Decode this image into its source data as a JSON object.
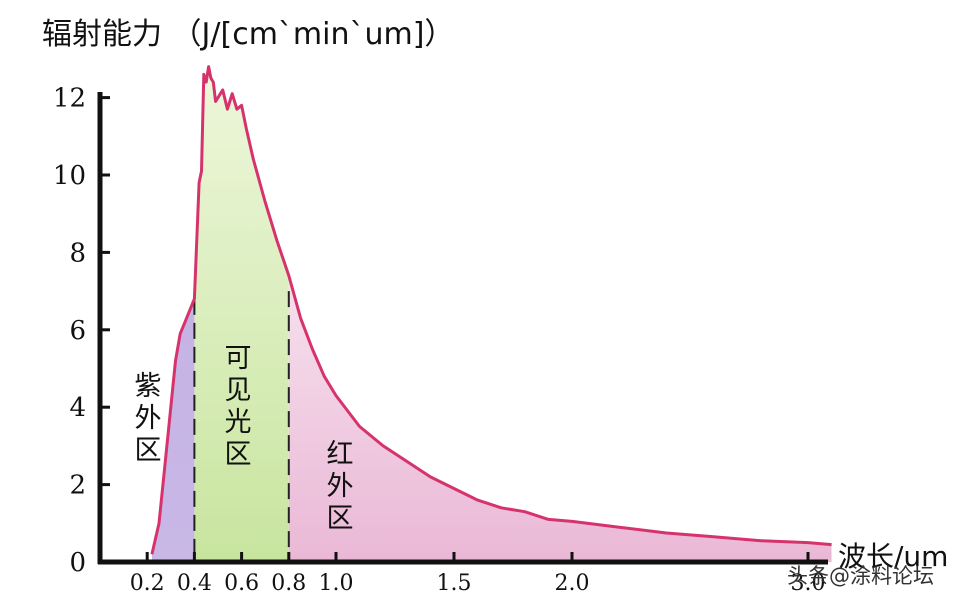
{
  "chart_data": {
    "type": "area",
    "title": "辐射能力 （J/[cm`min`um]）",
    "xlabel": "波长/um",
    "ylabel": "",
    "xlim": [
      0,
      3.2
    ],
    "ylim": [
      0,
      12.5
    ],
    "x_ticks": [
      {
        "value": 0.2,
        "label": "0.2"
      },
      {
        "value": 0.4,
        "label": "0.4"
      },
      {
        "value": 0.6,
        "label": "0.6"
      },
      {
        "value": 0.8,
        "label": "0.8"
      },
      {
        "value": 1.0,
        "label": "1.0"
      },
      {
        "value": 1.5,
        "label": "1.5"
      },
      {
        "value": 2.0,
        "label": "2.0"
      },
      {
        "value": 3.0,
        "label": "3.0"
      }
    ],
    "y_ticks": [
      {
        "value": 0,
        "label": "0"
      },
      {
        "value": 2,
        "label": "2"
      },
      {
        "value": 4,
        "label": "4"
      },
      {
        "value": 6,
        "label": "6"
      },
      {
        "value": 8,
        "label": "8"
      },
      {
        "value": 10,
        "label": "10"
      },
      {
        "value": 12,
        "label": "12"
      }
    ],
    "series": [
      {
        "color": "#d6336c",
        "x": [
          0.22,
          0.25,
          0.28,
          0.3,
          0.32,
          0.34,
          0.36,
          0.38,
          0.4,
          0.42,
          0.43,
          0.44,
          0.45,
          0.46,
          0.47,
          0.48,
          0.49,
          0.5,
          0.52,
          0.54,
          0.55,
          0.56,
          0.58,
          0.6,
          0.62,
          0.65,
          0.7,
          0.75,
          0.8,
          0.85,
          0.9,
          0.95,
          1.0,
          1.1,
          1.2,
          1.3,
          1.4,
          1.5,
          1.6,
          1.7,
          1.8,
          1.9,
          2.0,
          2.2,
          2.4,
          2.6,
          2.8,
          3.0,
          3.1
        ],
        "y": [
          0.2,
          1.0,
          2.8,
          4.0,
          5.2,
          5.9,
          6.2,
          6.5,
          6.8,
          9.8,
          10.1,
          12.6,
          12.4,
          12.8,
          12.5,
          12.4,
          11.9,
          12.0,
          12.2,
          11.7,
          11.9,
          12.1,
          11.7,
          11.8,
          11.2,
          10.4,
          9.3,
          8.3,
          7.4,
          6.3,
          5.5,
          4.8,
          4.3,
          3.5,
          3.0,
          2.6,
          2.2,
          1.9,
          1.6,
          1.4,
          1.3,
          1.1,
          1.05,
          0.9,
          0.75,
          0.65,
          0.55,
          0.5,
          0.45
        ]
      }
    ],
    "regions": [
      {
        "label": "紫外区",
        "x_start": 0.22,
        "x_end": 0.4,
        "color": "#c9b8e6"
      },
      {
        "label": "可见光区",
        "x_start": 0.4,
        "x_end": 0.8,
        "color": "#d4ecb2"
      },
      {
        "label": "红外区",
        "x_start": 0.8,
        "x_end": 3.1,
        "color": "#eab8d6"
      }
    ],
    "dashed_lines": [
      0.4,
      0.8
    ],
    "grid": false,
    "legend": "none"
  },
  "watermark": "头条@涂料论坛"
}
